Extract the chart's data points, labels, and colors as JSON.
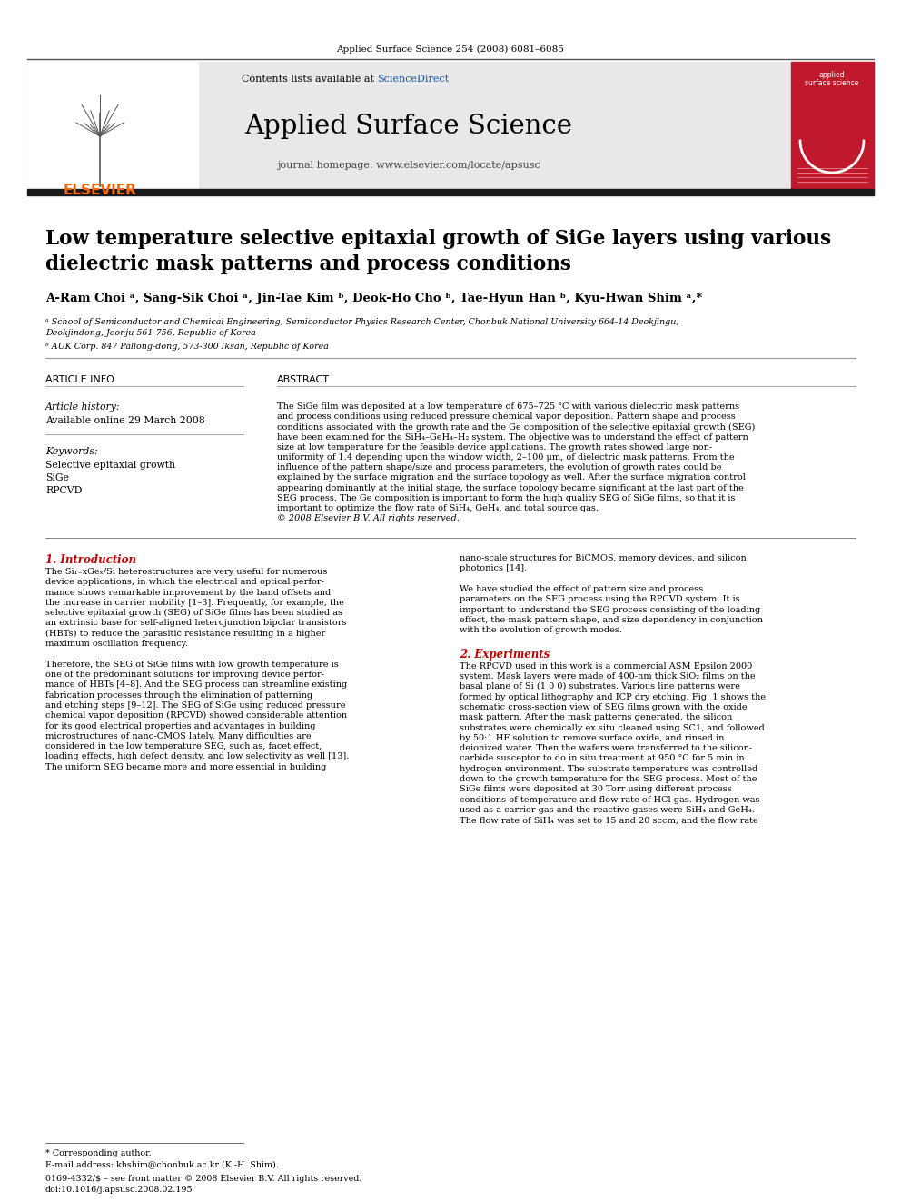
{
  "journal_ref": "Applied Surface Science 254 (2008) 6081–6085",
  "sciencedirect_color": "#1a56aa",
  "journal_name": "Applied Surface Science",
  "journal_homepage": "journal homepage: www.elsevier.com/locate/apsusc",
  "elsevier_color": "#ff6600",
  "title": "Low temperature selective epitaxial growth of SiGe layers using various\ndielectric mask patterns and process conditions",
  "authors": "A-Ram Choi ᵃ, Sang-Sik Choi ᵃ, Jin-Tae Kim ᵇ, Deok-Ho Cho ᵇ, Tae-Hyun Han ᵇ, Kyu-Hwan Shim ᵃ,*",
  "affil_a": "ᵃ School of Semiconductor and Chemical Engineering, Semiconductor Physics Research Center, Chonbuk National University 664-14 Deokjingu,\nDeokjindong, Jeonju 561-756, Republic of Korea",
  "affil_b": "ᵇ AUK Corp. 847 Pallong-dong, 573-300 Iksan, Republic of Korea",
  "article_info_header": "ARTICLE INFO",
  "abstract_header": "ABSTRACT",
  "article_history": "Article history:",
  "available_online": "Available online 29 March 2008",
  "keywords_header": "Keywords:",
  "keywords": "Selective epitaxial growth\nSiGe\nRPCVD",
  "abstract_lines": [
    "The SiGe film was deposited at a low temperature of 675–725 °C with various dielectric mask patterns",
    "and process conditions using reduced pressure chemical vapor deposition. Pattern shape and process",
    "conditions associated with the growth rate and the Ge composition of the selective epitaxial growth (SEG)",
    "have been examined for the SiH₄–GeH₄–H₂ system. The objective was to understand the effect of pattern",
    "size at low temperature for the feasible device applications. The growth rates showed large non-",
    "uniformity of 1.4 depending upon the window width, 2–100 μm, of dielectric mask patterns. From the",
    "influence of the pattern shape/size and process parameters, the evolution of growth rates could be",
    "explained by the surface migration and the surface topology as well. After the surface migration control",
    "appearing dominantly at the initial stage, the surface topology became significant at the last part of the",
    "SEG process. The Ge composition is important to form the high quality SEG of SiGe films, so that it is",
    "important to optimize the flow rate of SiH₄, GeH₄, and total source gas.",
    "© 2008 Elsevier B.V. All rights reserved."
  ],
  "intro_header": "1. Introduction",
  "intro_lines_left": [
    "The Si₁₋xGeₓ/Si heterostructures are very useful for numerous",
    "device applications, in which the electrical and optical perfor-",
    "mance shows remarkable improvement by the band offsets and",
    "the increase in carrier mobility [1–3]. Frequently, for example, the",
    "selective epitaxial growth (SEG) of SiGe films has been studied as",
    "an extrinsic base for self-aligned heterojunction bipolar transistors",
    "(HBTs) to reduce the parasitic resistance resulting in a higher",
    "maximum oscillation frequency.",
    "",
    "Therefore, the SEG of SiGe films with low growth temperature is",
    "one of the predominant solutions for improving device perfor-",
    "mance of HBTs [4–8]. And the SEG process can streamline existing",
    "fabrication processes through the elimination of patterning",
    "and etching steps [9–12]. The SEG of SiGe using reduced pressure",
    "chemical vapor deposition (RPCVD) showed considerable attention",
    "for its good electrical properties and advantages in building",
    "microstructures of nano-CMOS lately. Many difficulties are",
    "considered in the low temperature SEG, such as, facet effect,",
    "loading effects, high defect density, and low selectivity as well [13].",
    "The uniform SEG became more and more essential in building"
  ],
  "right_col_lines": [
    "nano-scale structures for BiCMOS, memory devices, and silicon",
    "photonics [14].",
    "",
    "We have studied the effect of pattern size and process",
    "parameters on the SEG process using the RPCVD system. It is",
    "important to understand the SEG process consisting of the loading",
    "effect, the mask pattern shape, and size dependency in conjunction",
    "with the evolution of growth modes."
  ],
  "experiments_header": "2. Experiments",
  "exp_lines": [
    "The RPCVD used in this work is a commercial ASM Epsilon 2000",
    "system. Mask layers were made of 400-nm thick SiO₂ films on the",
    "basal plane of Si (1 0 0) substrates. Various line patterns were",
    "formed by optical lithography and ICP dry etching. Fig. 1 shows the",
    "schematic cross-section view of SEG films grown with the oxide",
    "mask pattern. After the mask patterns generated, the silicon",
    "substrates were chemically ex situ cleaned using SC1, and followed",
    "by 50:1 HF solution to remove surface oxide, and rinsed in",
    "deionized water. Then the wafers were transferred to the silicon-",
    "carbide susceptor to do in situ treatment at 950 °C for 5 min in",
    "hydrogen environment. The substrate temperature was controlled",
    "down to the growth temperature for the SEG process. Most of the",
    "SiGe films were deposited at 30 Torr using different process",
    "conditions of temperature and flow rate of HCl gas. Hydrogen was",
    "used as a carrier gas and the reactive gases were SiH₄ and GeH₄.",
    "The flow rate of SiH₄ was set to 15 and 20 sccm, and the flow rate"
  ],
  "footnote_star": "* Corresponding author.",
  "footnote_email": "E-mail address: khshim@chonbuk.ac.kr (K.-H. Shim).",
  "footnote_issn": "0169-4332/$ – see front matter © 2008 Elsevier B.V. All rights reserved.",
  "footnote_doi": "doi:10.1016/j.apsusc.2008.02.195",
  "bg_color": "#ffffff",
  "elsevier_cover_color": "#c0192c",
  "dark_bar_color": "#1a1a1a"
}
